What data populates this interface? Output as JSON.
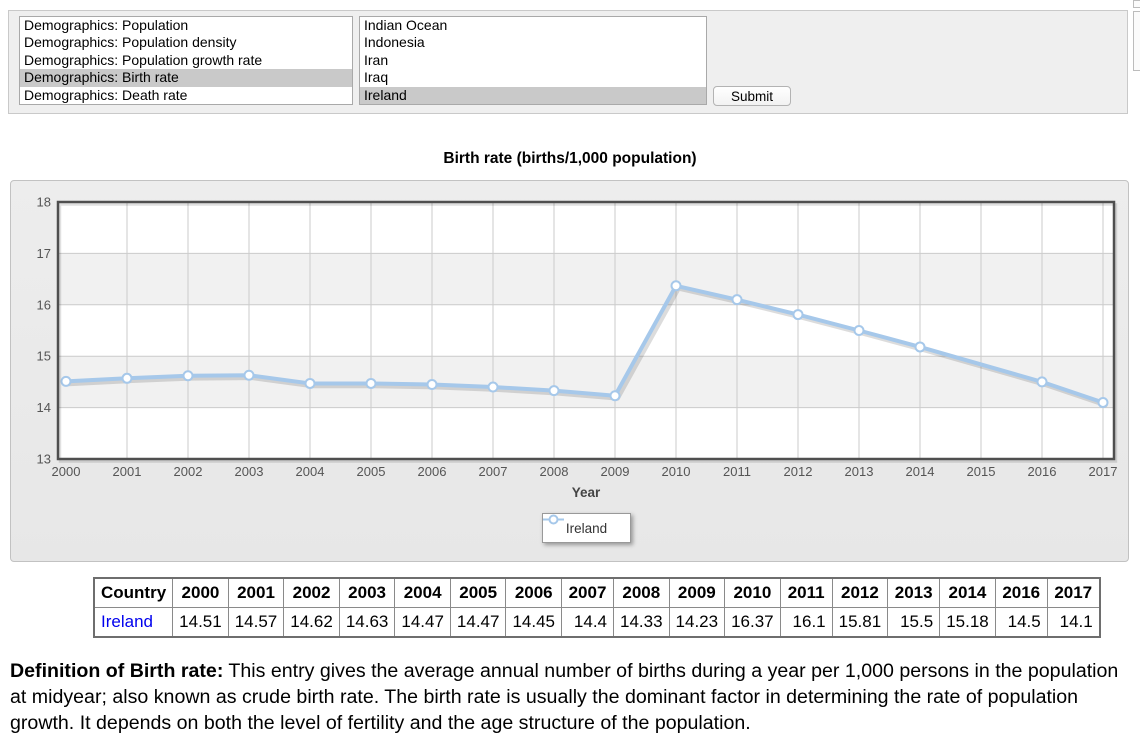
{
  "controls": {
    "dataset_list": {
      "items": [
        "Demographics: Population",
        "Demographics: Population density",
        "Demographics: Population growth rate",
        "Demographics: Birth rate",
        "Demographics: Death rate"
      ],
      "selected_index": 3
    },
    "country_list": {
      "items": [
        "Indian Ocean",
        "Indonesia",
        "Iran",
        "Iraq",
        "Ireland"
      ],
      "selected_index": 4
    },
    "submit_label": "Submit"
  },
  "chart_data": {
    "type": "line",
    "title": "Birth rate (births/1,000 population)",
    "xlabel": "Year",
    "ylabel": "",
    "ylim": [
      13,
      18
    ],
    "yticks": [
      13,
      14,
      15,
      16,
      17,
      18
    ],
    "xticks": [
      2000,
      2001,
      2002,
      2003,
      2004,
      2005,
      2006,
      2007,
      2008,
      2009,
      2010,
      2011,
      2012,
      2013,
      2014,
      2015,
      2016,
      2017
    ],
    "grid": true,
    "legend_position": "bottom",
    "series": [
      {
        "name": "Ireland",
        "x": [
          2000,
          2001,
          2002,
          2003,
          2004,
          2005,
          2006,
          2007,
          2008,
          2009,
          2010,
          2011,
          2012,
          2013,
          2014,
          2016,
          2017
        ],
        "values": [
          14.51,
          14.57,
          14.62,
          14.63,
          14.47,
          14.47,
          14.45,
          14.4,
          14.33,
          14.23,
          16.37,
          16.1,
          15.81,
          15.5,
          15.18,
          14.5,
          14.1
        ]
      }
    ]
  },
  "table": {
    "headers": [
      "Country",
      "2000",
      "2001",
      "2002",
      "2003",
      "2004",
      "2005",
      "2006",
      "2007",
      "2008",
      "2009",
      "2010",
      "2011",
      "2012",
      "2013",
      "2014",
      "2016",
      "2017"
    ],
    "rows": [
      {
        "country": "Ireland",
        "values": [
          "14.51",
          "14.57",
          "14.62",
          "14.63",
          "14.47",
          "14.47",
          "14.45",
          "14.4",
          "14.33",
          "14.23",
          "16.37",
          "16.1",
          "15.81",
          "15.5",
          "15.18",
          "14.5",
          "14.1"
        ]
      }
    ]
  },
  "definition": {
    "label": "Definition of Birth rate:",
    "text": " This entry gives the average annual number of births during a year per 1,000 persons in the population at midyear; also known as crude birth rate. The birth rate is usually the dominant factor in determining the rate of population growth. It depends on both the level of fertility and the age structure of the population."
  },
  "colors": {
    "series_line": "#a6c8ea",
    "marker_fill": "#ffffff",
    "band_gray": "#f1f1f1",
    "gridline": "#cbcbcb",
    "plot_border": "#4f4f4f",
    "tick_text": "#555555",
    "axis_label_text": "#444444",
    "selected_row": "#c9c9c9",
    "link_blue": "#0000ee"
  }
}
